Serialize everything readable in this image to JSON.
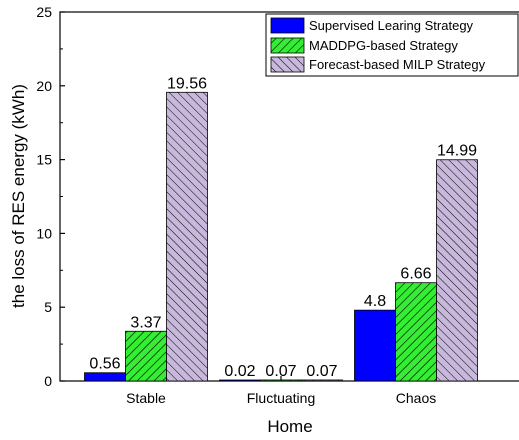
{
  "chart_data": {
    "type": "bar",
    "xlabel": "Home",
    "ylabel": "the loss of RES energy (kWh)",
    "ylim": [
      0,
      25
    ],
    "yticks": [
      0,
      5,
      10,
      15,
      20,
      25
    ],
    "categories": [
      "Stable",
      "Fluctuating",
      "Chaos"
    ],
    "series": [
      {
        "name": "Supervised Learing Strategy",
        "values": [
          0.56,
          0.02,
          4.8
        ],
        "labels": [
          "0.56",
          "0.02",
          "4.8"
        ],
        "color": "#0000ff",
        "pattern": "solid"
      },
      {
        "name": "MADDPG-based Strategy",
        "values": [
          3.37,
          0.07,
          6.66
        ],
        "labels": [
          "3.37",
          "0.07",
          "6.66"
        ],
        "color": "#33ee33",
        "pattern": "diagonal-forward"
      },
      {
        "name": "Forecast-based MILP Strategy",
        "values": [
          19.56,
          0.07,
          14.99
        ],
        "labels": [
          "19.56",
          "0.07",
          "14.99"
        ],
        "color": "#c8b8dc",
        "pattern": "diagonal-backward"
      }
    ],
    "legend_position": "top-right",
    "grid": false
  }
}
